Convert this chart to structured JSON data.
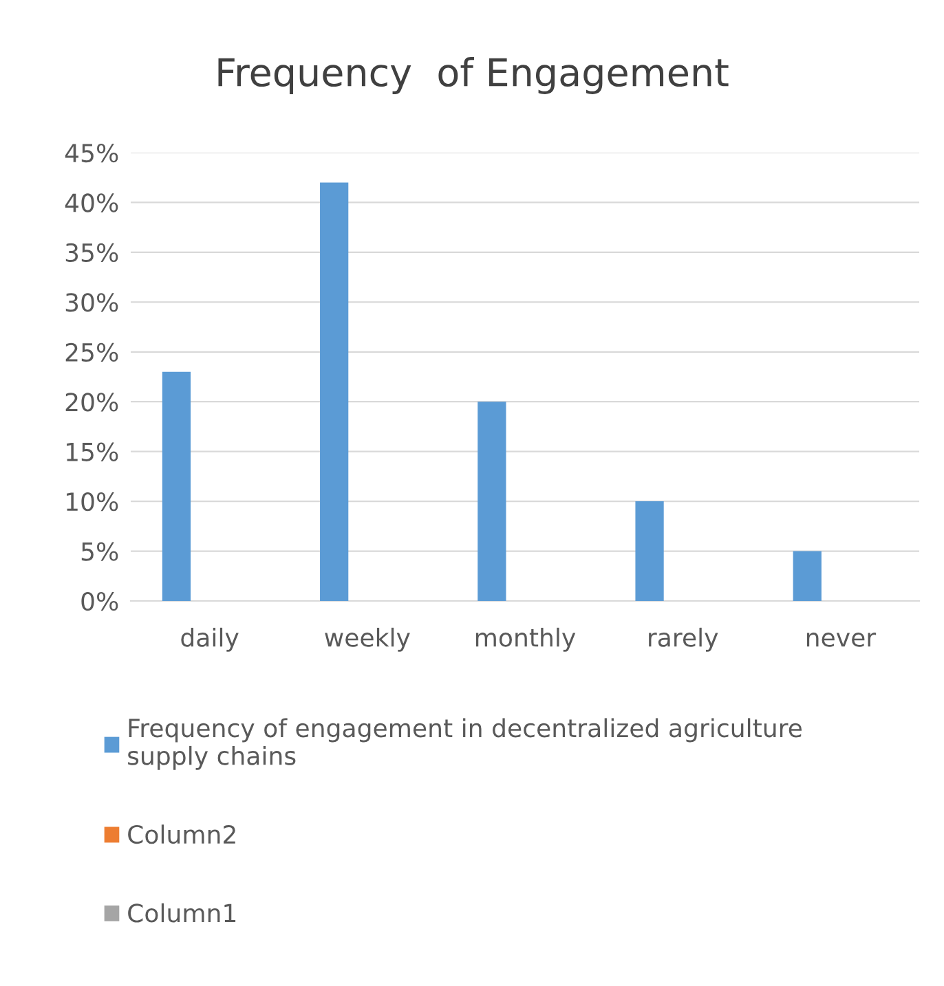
{
  "chart_data": {
    "type": "bar",
    "title": "Frequency  of Engagement",
    "categories": [
      "daily",
      "weekly",
      "monthly",
      "rarely",
      "never"
    ],
    "series": [
      {
        "name": "Frequency of engagement in decentralized agriculture\nsupply chains",
        "color": "#5b9bd5",
        "values": [
          23,
          42,
          20,
          10,
          5
        ]
      },
      {
        "name": "Column2",
        "color": "#ed7d31",
        "values": [
          null,
          null,
          null,
          null,
          null
        ]
      },
      {
        "name": "Column1",
        "color": "#a5a5a5",
        "values": [
          null,
          null,
          null,
          null,
          null
        ]
      }
    ],
    "ylim": [
      0,
      45
    ],
    "yticks": [
      {
        "value": 0,
        "label": "0%"
      },
      {
        "value": 5,
        "label": "5%"
      },
      {
        "value": 10,
        "label": "10%"
      },
      {
        "value": 15,
        "label": "15%"
      },
      {
        "value": 20,
        "label": "20%"
      },
      {
        "value": 25,
        "label": "25%"
      },
      {
        "value": 30,
        "label": "30%"
      },
      {
        "value": 35,
        "label": "35%"
      },
      {
        "value": 40,
        "label": "40%"
      },
      {
        "value": 45,
        "label": "45%"
      }
    ],
    "grid": "y",
    "legend": "bottom"
  }
}
